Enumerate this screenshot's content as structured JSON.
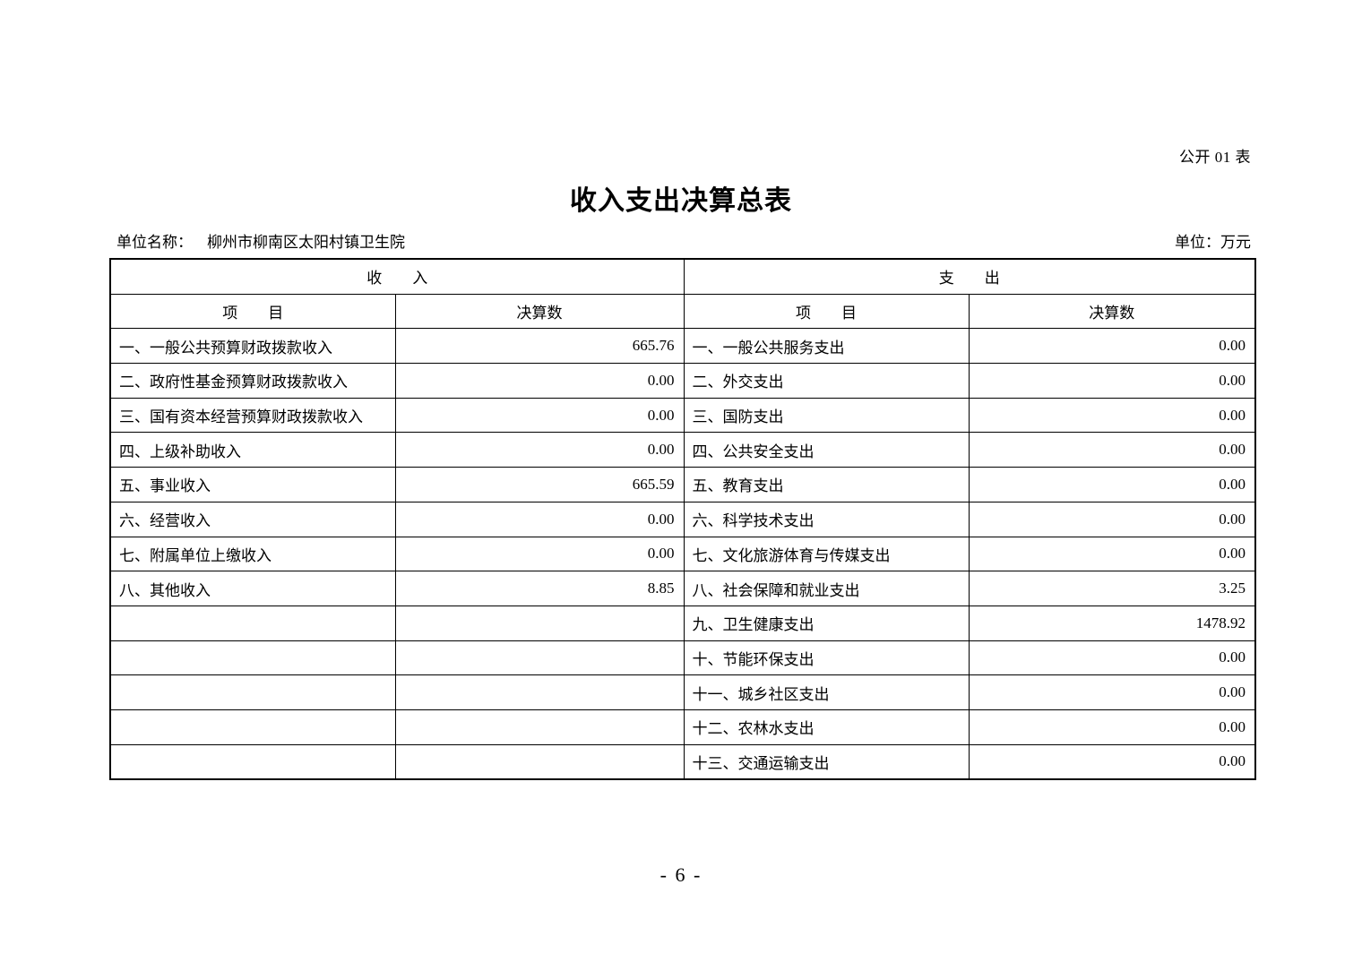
{
  "page": {
    "note": "公开 01 表",
    "title": "收入支出决算总表",
    "unit_name_label": "单位名称：",
    "unit_name": "柳州市柳南区太阳村镇卫生院",
    "unit_label": "单位：万元",
    "page_number": "- 6 -"
  },
  "table": {
    "income_header": "收　　入",
    "expense_header": "支　　出",
    "item_header": "项　　目",
    "amount_header": "决算数",
    "rows": [
      {
        "income_item": "一、一般公共预算财政拨款收入",
        "income_amount": "665.76",
        "expense_item": "一、一般公共服务支出",
        "expense_amount": "0.00"
      },
      {
        "income_item": "二、政府性基金预算财政拨款收入",
        "income_amount": "0.00",
        "expense_item": "二、外交支出",
        "expense_amount": "0.00"
      },
      {
        "income_item": "三、国有资本经营预算财政拨款收入",
        "income_amount": "0.00",
        "expense_item": "三、国防支出",
        "expense_amount": "0.00"
      },
      {
        "income_item": "四、上级补助收入",
        "income_amount": "0.00",
        "expense_item": "四、公共安全支出",
        "expense_amount": "0.00"
      },
      {
        "income_item": "五、事业收入",
        "income_amount": "665.59",
        "expense_item": "五、教育支出",
        "expense_amount": "0.00"
      },
      {
        "income_item": "六、经营收入",
        "income_amount": "0.00",
        "expense_item": "六、科学技术支出",
        "expense_amount": "0.00"
      },
      {
        "income_item": "七、附属单位上缴收入",
        "income_amount": "0.00",
        "expense_item": "七、文化旅游体育与传媒支出",
        "expense_amount": "0.00"
      },
      {
        "income_item": "八、其他收入",
        "income_amount": "8.85",
        "expense_item": "八、社会保障和就业支出",
        "expense_amount": "3.25"
      },
      {
        "income_item": "",
        "income_amount": "",
        "expense_item": "九、卫生健康支出",
        "expense_amount": "1478.92"
      },
      {
        "income_item": "",
        "income_amount": "",
        "expense_item": "十、节能环保支出",
        "expense_amount": "0.00"
      },
      {
        "income_item": "",
        "income_amount": "",
        "expense_item": "十一、城乡社区支出",
        "expense_amount": "0.00"
      },
      {
        "income_item": "",
        "income_amount": "",
        "expense_item": "十二、农林水支出",
        "expense_amount": "0.00"
      },
      {
        "income_item": "",
        "income_amount": "",
        "expense_item": "十三、交通运输支出",
        "expense_amount": "0.00"
      }
    ]
  }
}
